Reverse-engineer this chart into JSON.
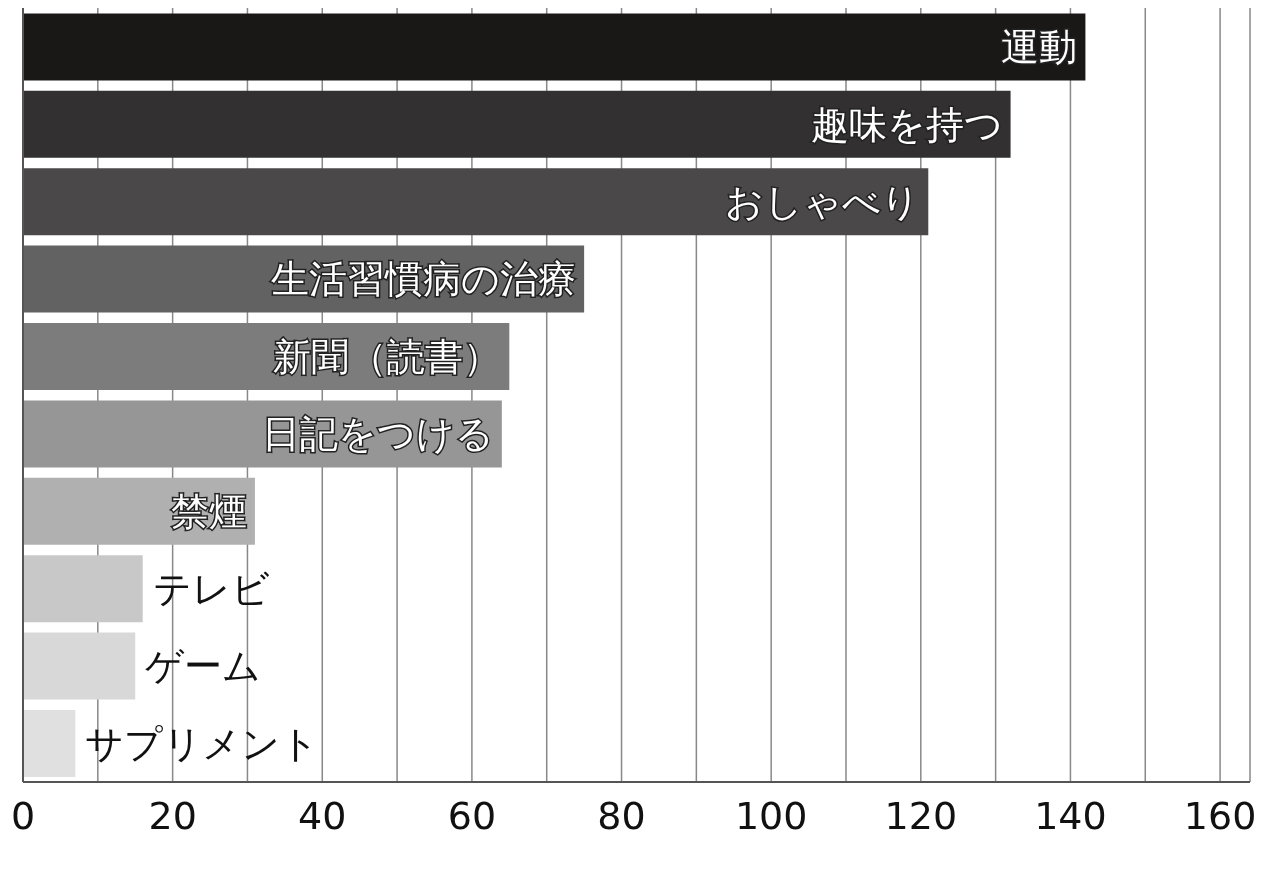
{
  "chart_data": {
    "type": "bar",
    "orientation": "horizontal",
    "categories": [
      "運動",
      "趣味を持つ",
      "おしゃべり",
      "生活習慣病の治療",
      "新聞（読書）",
      "日記をつける",
      "禁煙",
      "テレビ",
      "ゲーム",
      "サプリメント"
    ],
    "values": [
      142,
      132,
      121,
      75,
      65,
      64,
      31,
      16,
      15,
      7
    ],
    "colors": [
      "#1a1717",
      "#323030",
      "#4a4848",
      "#636262",
      "#7d7c7c",
      "#979696",
      "#b1b0b0",
      "#c8c8c8",
      "#d8d8d8",
      "#e0e0e0"
    ],
    "xlim": [
      0,
      164
    ],
    "xticks": [
      0,
      {
        "value": 10,
        "label": null
      },
      20,
      {
        "value": 30,
        "label": null
      },
      40,
      {
        "value": 50,
        "label": null
      },
      60,
      {
        "value": 70,
        "label": null
      },
      80,
      {
        "value": 90,
        "label": null
      },
      100,
      {
        "value": 110,
        "label": null
      },
      120,
      {
        "value": 130,
        "label": null
      },
      140,
      {
        "value": 150,
        "label": null
      },
      160
    ],
    "grid": "x"
  }
}
